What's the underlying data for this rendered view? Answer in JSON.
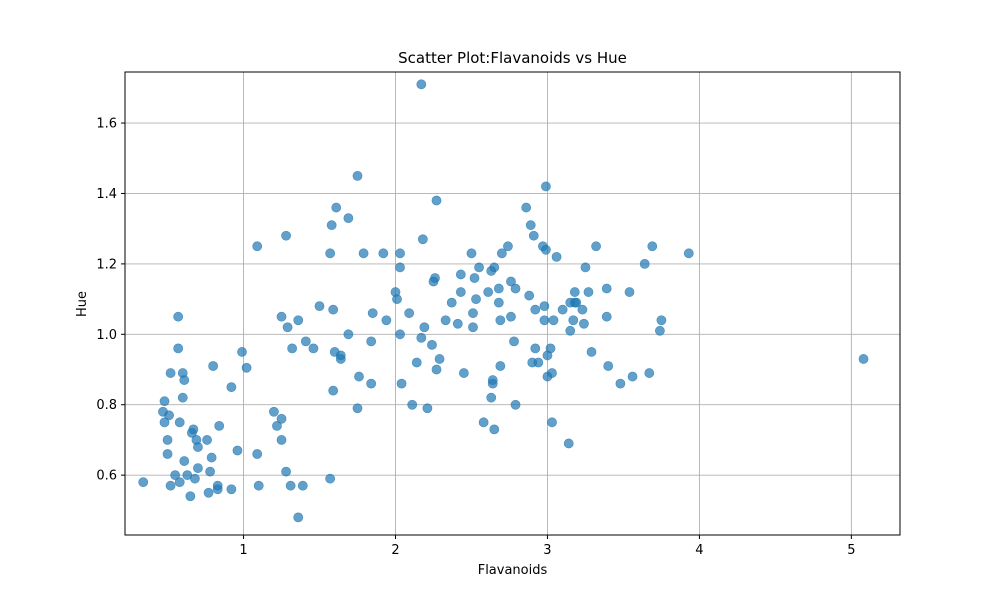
{
  "chart_data": {
    "type": "scatter",
    "title": "Scatter Plot:Flavanoids vs Hue",
    "xlabel": "Flavanoids",
    "ylabel": "Hue",
    "xlim": [
      0.22,
      5.32
    ],
    "ylim": [
      0.43,
      1.745
    ],
    "xticks": [
      1,
      2,
      3,
      4,
      5
    ],
    "xtick_labels": [
      "1",
      "2",
      "3",
      "4",
      "5"
    ],
    "yticks": [
      0.6,
      0.8,
      1.0,
      1.2,
      1.4,
      1.6
    ],
    "ytick_labels": [
      "0.6",
      "0.8",
      "1.0",
      "1.2",
      "1.4",
      "1.6"
    ],
    "grid": true,
    "marker_color": "#1f77b4",
    "marker_alpha": 0.7,
    "series": [
      {
        "x": [
          0.34,
          0.47,
          0.48,
          0.48,
          0.5,
          0.5,
          0.51,
          0.52,
          0.52,
          0.55,
          0.57,
          0.57,
          0.58,
          0.58,
          0.6,
          0.6,
          0.61,
          0.61,
          0.63,
          0.65,
          0.66,
          0.67,
          0.68,
          0.69,
          0.7,
          0.7,
          0.76,
          0.77,
          0.78,
          0.79,
          0.8,
          0.83,
          0.83,
          0.84,
          0.92,
          0.92,
          0.96,
          0.99,
          1.02,
          1.09,
          1.09,
          1.1,
          1.2,
          1.22,
          1.25,
          1.25,
          1.25,
          1.28,
          1.28,
          1.29,
          1.31,
          1.32,
          1.36,
          1.36,
          1.39,
          1.41,
          1.46,
          1.5,
          1.57,
          1.57,
          1.58,
          1.59,
          1.59,
          1.6,
          1.61,
          1.64,
          1.64,
          1.69,
          1.69,
          1.75,
          1.75,
          1.76,
          1.79,
          1.84,
          1.84,
          1.85,
          1.92,
          1.94,
          2.0,
          2.01,
          2.03,
          2.03,
          2.03,
          2.04,
          2.09,
          2.11,
          2.14,
          2.17,
          2.17,
          2.18,
          2.19,
          2.21,
          2.24,
          2.25,
          2.26,
          2.27,
          2.27,
          2.29,
          2.33,
          2.37,
          2.41,
          2.43,
          2.43,
          2.45,
          2.5,
          2.51,
          2.51,
          2.52,
          2.53,
          2.55,
          2.58,
          2.61,
          2.63,
          2.63,
          2.64,
          2.64,
          2.65,
          2.65,
          2.68,
          2.68,
          2.69,
          2.69,
          2.7,
          2.74,
          2.76,
          2.76,
          2.78,
          2.79,
          2.79,
          2.86,
          2.88,
          2.89,
          2.9,
          2.91,
          2.92,
          2.92,
          2.94,
          2.97,
          2.98,
          2.98,
          2.99,
          2.99,
          3.0,
          3.0,
          3.02,
          3.03,
          3.03,
          3.04,
          3.06,
          3.1,
          3.14,
          3.15,
          3.15,
          3.17,
          3.18,
          3.18,
          3.19,
          3.23,
          3.24,
          3.25,
          3.27,
          3.29,
          3.32,
          3.39,
          3.39,
          3.4,
          3.48,
          3.54,
          3.56,
          3.64,
          3.67,
          3.69,
          3.74,
          3.75,
          3.93,
          5.08
        ],
        "y": [
          0.58,
          0.78,
          0.75,
          0.81,
          0.66,
          0.7,
          0.77,
          0.57,
          0.89,
          0.6,
          0.96,
          1.05,
          0.75,
          0.58,
          0.82,
          0.89,
          0.87,
          0.64,
          0.6,
          0.54,
          0.72,
          0.73,
          0.59,
          0.7,
          0.68,
          0.62,
          0.7,
          0.55,
          0.61,
          0.65,
          0.91,
          0.56,
          0.57,
          0.74,
          0.85,
          0.56,
          0.67,
          0.95,
          0.905,
          1.25,
          0.66,
          0.57,
          0.78,
          0.74,
          0.7,
          0.76,
          1.05,
          1.28,
          0.61,
          1.02,
          0.57,
          0.96,
          1.04,
          0.48,
          0.57,
          0.98,
          0.96,
          1.08,
          1.23,
          0.59,
          1.31,
          0.84,
          1.07,
          0.95,
          1.36,
          0.94,
          0.93,
          1.33,
          1.0,
          0.79,
          1.45,
          0.88,
          1.23,
          0.86,
          0.98,
          1.06,
          1.23,
          1.04,
          1.12,
          1.1,
          1.19,
          1.23,
          1.0,
          0.86,
          1.06,
          0.8,
          0.92,
          0.99,
          1.71,
          1.27,
          1.02,
          0.79,
          0.97,
          1.15,
          1.16,
          1.38,
          0.9,
          0.93,
          1.04,
          1.09,
          1.03,
          1.17,
          1.12,
          0.89,
          1.23,
          1.06,
          1.02,
          1.16,
          1.1,
          1.19,
          0.75,
          1.12,
          0.82,
          1.18,
          0.86,
          0.87,
          1.19,
          0.73,
          1.13,
          1.09,
          1.04,
          0.91,
          1.23,
          1.25,
          1.15,
          1.05,
          0.98,
          1.13,
          0.8,
          1.36,
          1.11,
          1.31,
          0.92,
          1.28,
          0.96,
          1.07,
          0.92,
          1.25,
          1.04,
          1.08,
          1.24,
          1.42,
          0.88,
          0.94,
          0.96,
          0.75,
          0.89,
          1.04,
          1.22,
          1.07,
          0.69,
          1.01,
          1.09,
          1.04,
          1.12,
          1.09,
          1.09,
          1.07,
          1.03,
          1.19,
          1.12,
          0.95,
          1.25,
          1.13,
          1.05,
          0.91,
          0.86,
          1.12,
          0.88,
          1.2,
          0.89,
          1.25,
          1.01,
          1.04,
          1.23,
          0.93
        ]
      }
    ]
  }
}
